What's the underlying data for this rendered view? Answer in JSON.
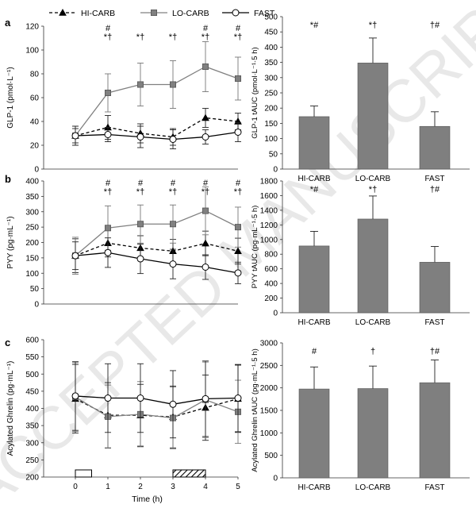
{
  "legend": [
    {
      "name": "HI-CARB",
      "marker": "triangle",
      "dash": true
    },
    {
      "name": "LO-CARB",
      "marker": "square",
      "dash": false
    },
    {
      "name": "FAST",
      "marker": "circle",
      "dash": false
    }
  ],
  "watermark": "ACCEPTED MANUSCRIPT",
  "colors": {
    "lo": "#808080",
    "bar": "#7f7f7f",
    "axis": "#333333",
    "hi": "#000000"
  },
  "chart_data": [
    {
      "id": "a-line",
      "panel": "a",
      "type": "line",
      "xlabel": "",
      "ylabel": "GLP-1 (pmol·L⁻¹)",
      "ylim": [
        0,
        120
      ],
      "yticks": [
        0,
        20,
        40,
        60,
        80,
        100,
        120
      ],
      "x": [
        0,
        1,
        2,
        3,
        4,
        5
      ],
      "xticks": [],
      "series": [
        {
          "name": "HI-CARB",
          "values": [
            28,
            35,
            30,
            27,
            43,
            40
          ],
          "errors": [
            6,
            10,
            8,
            7,
            8,
            7
          ]
        },
        {
          "name": "LO-CARB",
          "values": [
            28,
            64,
            71,
            71,
            86,
            76
          ],
          "errors": [
            8,
            16,
            18,
            20,
            21,
            18
          ]
        },
        {
          "name": "FAST",
          "values": [
            28,
            29,
            27,
            25,
            27,
            31
          ],
          "errors": [
            8,
            6,
            9,
            8,
            6,
            8
          ]
        }
      ],
      "annotations": [
        {
          "x": 1,
          "lines": [
            "#",
            "*†"
          ]
        },
        {
          "x": 2,
          "lines": [
            "*†"
          ]
        },
        {
          "x": 3,
          "lines": [
            "*†"
          ]
        },
        {
          "x": 4,
          "lines": [
            "#",
            "*†"
          ]
        },
        {
          "x": 5,
          "lines": [
            "#",
            "*†"
          ]
        }
      ]
    },
    {
      "id": "a-bar",
      "panel": "",
      "type": "bar",
      "ylabel": "GLP-1 tAUC (pmol·L⁻¹·5 h)",
      "categories": [
        "HI-CARB",
        "LO-CARB",
        "FAST"
      ],
      "values": [
        172,
        348,
        140
      ],
      "errors": [
        35,
        82,
        48
      ],
      "ylim": [
        0,
        500
      ],
      "yticks": [
        0,
        50,
        100,
        150,
        200,
        250,
        300,
        350,
        400,
        450,
        500
      ],
      "annotations": [
        "*#",
        "*†",
        "†#"
      ]
    },
    {
      "id": "b-line",
      "panel": "b",
      "type": "line",
      "xlabel": "",
      "ylabel": "PYY (pg·mL⁻¹)",
      "ylim": [
        0,
        400
      ],
      "yticks": [
        0,
        50,
        100,
        150,
        200,
        250,
        300,
        350,
        400
      ],
      "x": [
        0,
        1,
        2,
        3,
        4,
        5
      ],
      "xticks": [],
      "series": [
        {
          "name": "HI-CARB",
          "values": [
            157,
            198,
            182,
            172,
            197,
            172
          ],
          "errors": [
            55,
            45,
            40,
            38,
            40,
            42
          ]
        },
        {
          "name": "LO-CARB",
          "values": [
            157,
            247,
            260,
            260,
            303,
            250
          ],
          "errors": [
            60,
            72,
            62,
            62,
            78,
            65
          ]
        },
        {
          "name": "FAST",
          "values": [
            157,
            167,
            147,
            130,
            120,
            101
          ],
          "errors": [
            45,
            48,
            48,
            48,
            40,
            35
          ]
        }
      ],
      "annotations": [
        {
          "x": 1,
          "lines": [
            "#",
            "*†"
          ]
        },
        {
          "x": 2,
          "lines": [
            "#",
            "*†"
          ]
        },
        {
          "x": 3,
          "lines": [
            "#",
            "*†"
          ]
        },
        {
          "x": 4,
          "lines": [
            "#",
            "*†"
          ]
        },
        {
          "x": 5,
          "lines": [
            "#",
            "*†"
          ]
        }
      ]
    },
    {
      "id": "b-bar",
      "panel": "",
      "type": "bar",
      "ylabel": "PYY tAUC (pg·mL⁻¹·5 h)",
      "categories": [
        "HI-CARB",
        "LO-CARB",
        "FAST"
      ],
      "values": [
        912,
        1280,
        690
      ],
      "errors": [
        200,
        315,
        215
      ],
      "ylim": [
        0,
        1800
      ],
      "yticks": [
        0,
        200,
        400,
        600,
        800,
        1000,
        1200,
        1400,
        1600,
        1800
      ],
      "annotations": [
        "*#",
        "*†",
        "†#"
      ]
    },
    {
      "id": "c-line",
      "panel": "c",
      "type": "line",
      "xlabel": "Time (h)",
      "ylabel": "Acylated Ghrelin (pg·mL⁻¹)",
      "ylim": [
        200,
        600
      ],
      "yticks": [
        200,
        250,
        300,
        350,
        400,
        450,
        500,
        550,
        600
      ],
      "x": [
        0,
        1,
        2,
        3,
        4,
        5
      ],
      "xticks": [
        0,
        1,
        2,
        3,
        4,
        5
      ],
      "series": [
        {
          "name": "HI-CARB",
          "values": [
            428,
            380,
            380,
            375,
            402,
            428
          ],
          "errors": [
            100,
            95,
            90,
            90,
            95,
            98
          ]
        },
        {
          "name": "LO-CARB",
          "values": [
            433,
            376,
            383,
            372,
            425,
            390
          ],
          "errors": [
            100,
            92,
            95,
            90,
            110,
            92
          ]
        },
        {
          "name": "FAST",
          "values": [
            436,
            430,
            430,
            412,
            428,
            430
          ],
          "errors": [
            100,
            100,
            100,
            98,
            110,
            98
          ]
        }
      ],
      "annotations": [],
      "meals": [
        {
          "from": 0,
          "to": 0.5,
          "pattern": "open"
        },
        {
          "from": 3,
          "to": 4,
          "pattern": "hatched"
        }
      ]
    },
    {
      "id": "c-bar",
      "panel": "",
      "type": "bar",
      "ylabel": "Acylated Ghrelin tAUC (pg·mL⁻¹·5 h)",
      "categories": [
        "HI-CARB",
        "LO-CARB",
        "FAST"
      ],
      "values": [
        1975,
        1985,
        2115
      ],
      "errors": [
        490,
        500,
        505
      ],
      "ylim": [
        0,
        3000
      ],
      "yticks": [
        0,
        500,
        1000,
        1500,
        2000,
        2500,
        3000
      ],
      "annotations": [
        "#",
        "†",
        "†#"
      ]
    }
  ]
}
